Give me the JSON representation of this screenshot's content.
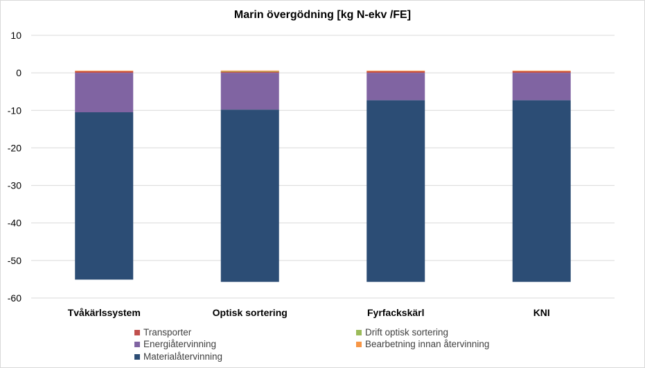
{
  "chart_data": {
    "type": "bar",
    "stacked": true,
    "title": "Marin övergödning [kg N-ekv /FE]",
    "xlabel": "",
    "ylabel": "",
    "ylim": [
      -60,
      10
    ],
    "yticks": [
      10,
      0,
      -10,
      -20,
      -30,
      -40,
      -50,
      -60
    ],
    "grid": true,
    "legend_position": "bottom",
    "categories": [
      "Tvåkärlssystem",
      "Optisk sortering",
      "Fyrfackskärl",
      "KNI"
    ],
    "series": [
      {
        "name": "Transporter",
        "color": "#c0504d",
        "values": [
          0.4,
          0.4,
          0.4,
          0.4
        ]
      },
      {
        "name": "Drift optisk sortering",
        "color": "#9bbb59",
        "values": [
          0,
          0.02,
          0,
          0
        ]
      },
      {
        "name": "Energiåtervinning",
        "color": "#8064a2",
        "values": [
          -10.5,
          -9.8,
          -7.3,
          -7.3
        ]
      },
      {
        "name": "Bearbetning innan återvinning",
        "color": "#f79646",
        "values": [
          0.2,
          0.2,
          0.2,
          0.2
        ]
      },
      {
        "name": "Materialåtervinning",
        "color": "#2c4d75",
        "values": [
          -44.6,
          -45.9,
          -48.4,
          -48.4
        ]
      }
    ]
  }
}
